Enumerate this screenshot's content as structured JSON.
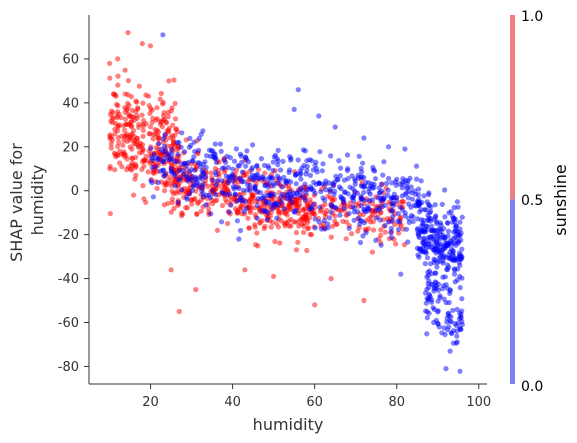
{
  "chart_data": {
    "type": "scatter",
    "xlabel": "humidity",
    "ylabel_lines": [
      "SHAP value for",
      "humidity"
    ],
    "xlim": [
      5,
      102
    ],
    "ylim": [
      -88,
      80
    ],
    "x_ticks": [
      20,
      40,
      60,
      80,
      100
    ],
    "y_ticks": [
      60,
      40,
      20,
      0,
      -20,
      -40,
      -60,
      -80
    ],
    "grid": false,
    "colorbar": {
      "label": "sunshine",
      "range": [
        0.0,
        1.0
      ],
      "ticks": [
        "1.0",
        "0.5",
        "0.0"
      ],
      "colors": {
        "high": "#ff0000",
        "low": "#0000ff"
      }
    },
    "clusters": [
      {
        "color": "#ff0000",
        "count": 320,
        "x_range": [
          10,
          27
        ],
        "y_mean_at_start": 28,
        "y_mean_at_end": 18,
        "y_spread": 11
      },
      {
        "color": "#ff0000",
        "count": 420,
        "x_range": [
          25,
          60
        ],
        "y_mean_at_start": 3,
        "y_mean_at_end": -10,
        "y_spread": 7
      },
      {
        "color": "#ff0000",
        "count": 160,
        "x_range": [
          55,
          82
        ],
        "y_mean_at_start": -8,
        "y_mean_at_end": -12,
        "y_spread": 6
      },
      {
        "color": "#0000ff",
        "count": 160,
        "x_range": [
          20,
          40
        ],
        "y_mean_at_start": 12,
        "y_mean_at_end": 6,
        "y_spread": 8
      },
      {
        "color": "#0000ff",
        "count": 420,
        "x_range": [
          40,
          85
        ],
        "y_mean_at_start": 5,
        "y_mean_at_end": -6,
        "y_spread": 8
      },
      {
        "color": "#0000ff",
        "count": 260,
        "x_range": [
          85,
          96
        ],
        "y_mean_at_start": -15,
        "y_mean_at_end": -30,
        "y_spread": 9
      },
      {
        "color": "#0000ff",
        "count": 90,
        "x_range": [
          87,
          96
        ],
        "y_mean_at_start": -45,
        "y_mean_at_end": -65,
        "y_spread": 8
      }
    ],
    "outliers": [
      {
        "x": 14.5,
        "y": 72,
        "color": "#ff0000"
      },
      {
        "x": 23,
        "y": 71,
        "color": "#0000ff"
      },
      {
        "x": 18,
        "y": 67,
        "color": "#ff0000"
      },
      {
        "x": 20,
        "y": 66,
        "color": "#ff0000"
      },
      {
        "x": 12,
        "y": 60,
        "color": "#ff0000"
      },
      {
        "x": 27,
        "y": -55,
        "color": "#ff0000"
      },
      {
        "x": 31,
        "y": -45,
        "color": "#ff0000"
      },
      {
        "x": 25,
        "y": -36,
        "color": "#ff0000"
      },
      {
        "x": 60,
        "y": -52,
        "color": "#ff0000"
      },
      {
        "x": 72,
        "y": -50,
        "color": "#ff0000"
      },
      {
        "x": 43,
        "y": -36,
        "color": "#ff0000"
      },
      {
        "x": 50,
        "y": -39,
        "color": "#ff0000"
      },
      {
        "x": 64,
        "y": -40,
        "color": "#ff0000"
      },
      {
        "x": 56,
        "y": 46,
        "color": "#0000ff"
      },
      {
        "x": 55,
        "y": 37,
        "color": "#0000ff"
      },
      {
        "x": 61,
        "y": 34,
        "color": "#0000ff"
      },
      {
        "x": 65,
        "y": 29,
        "color": "#0000ff"
      },
      {
        "x": 72,
        "y": 24,
        "color": "#0000ff"
      },
      {
        "x": 78,
        "y": 20,
        "color": "#0000ff"
      },
      {
        "x": 82,
        "y": 19,
        "color": "#0000ff"
      },
      {
        "x": 92,
        "y": -81,
        "color": "#0000ff"
      },
      {
        "x": 93,
        "y": -73,
        "color": "#0000ff"
      },
      {
        "x": 89,
        "y": -60,
        "color": "#0000ff"
      },
      {
        "x": 81,
        "y": -38,
        "color": "#0000ff"
      }
    ]
  }
}
